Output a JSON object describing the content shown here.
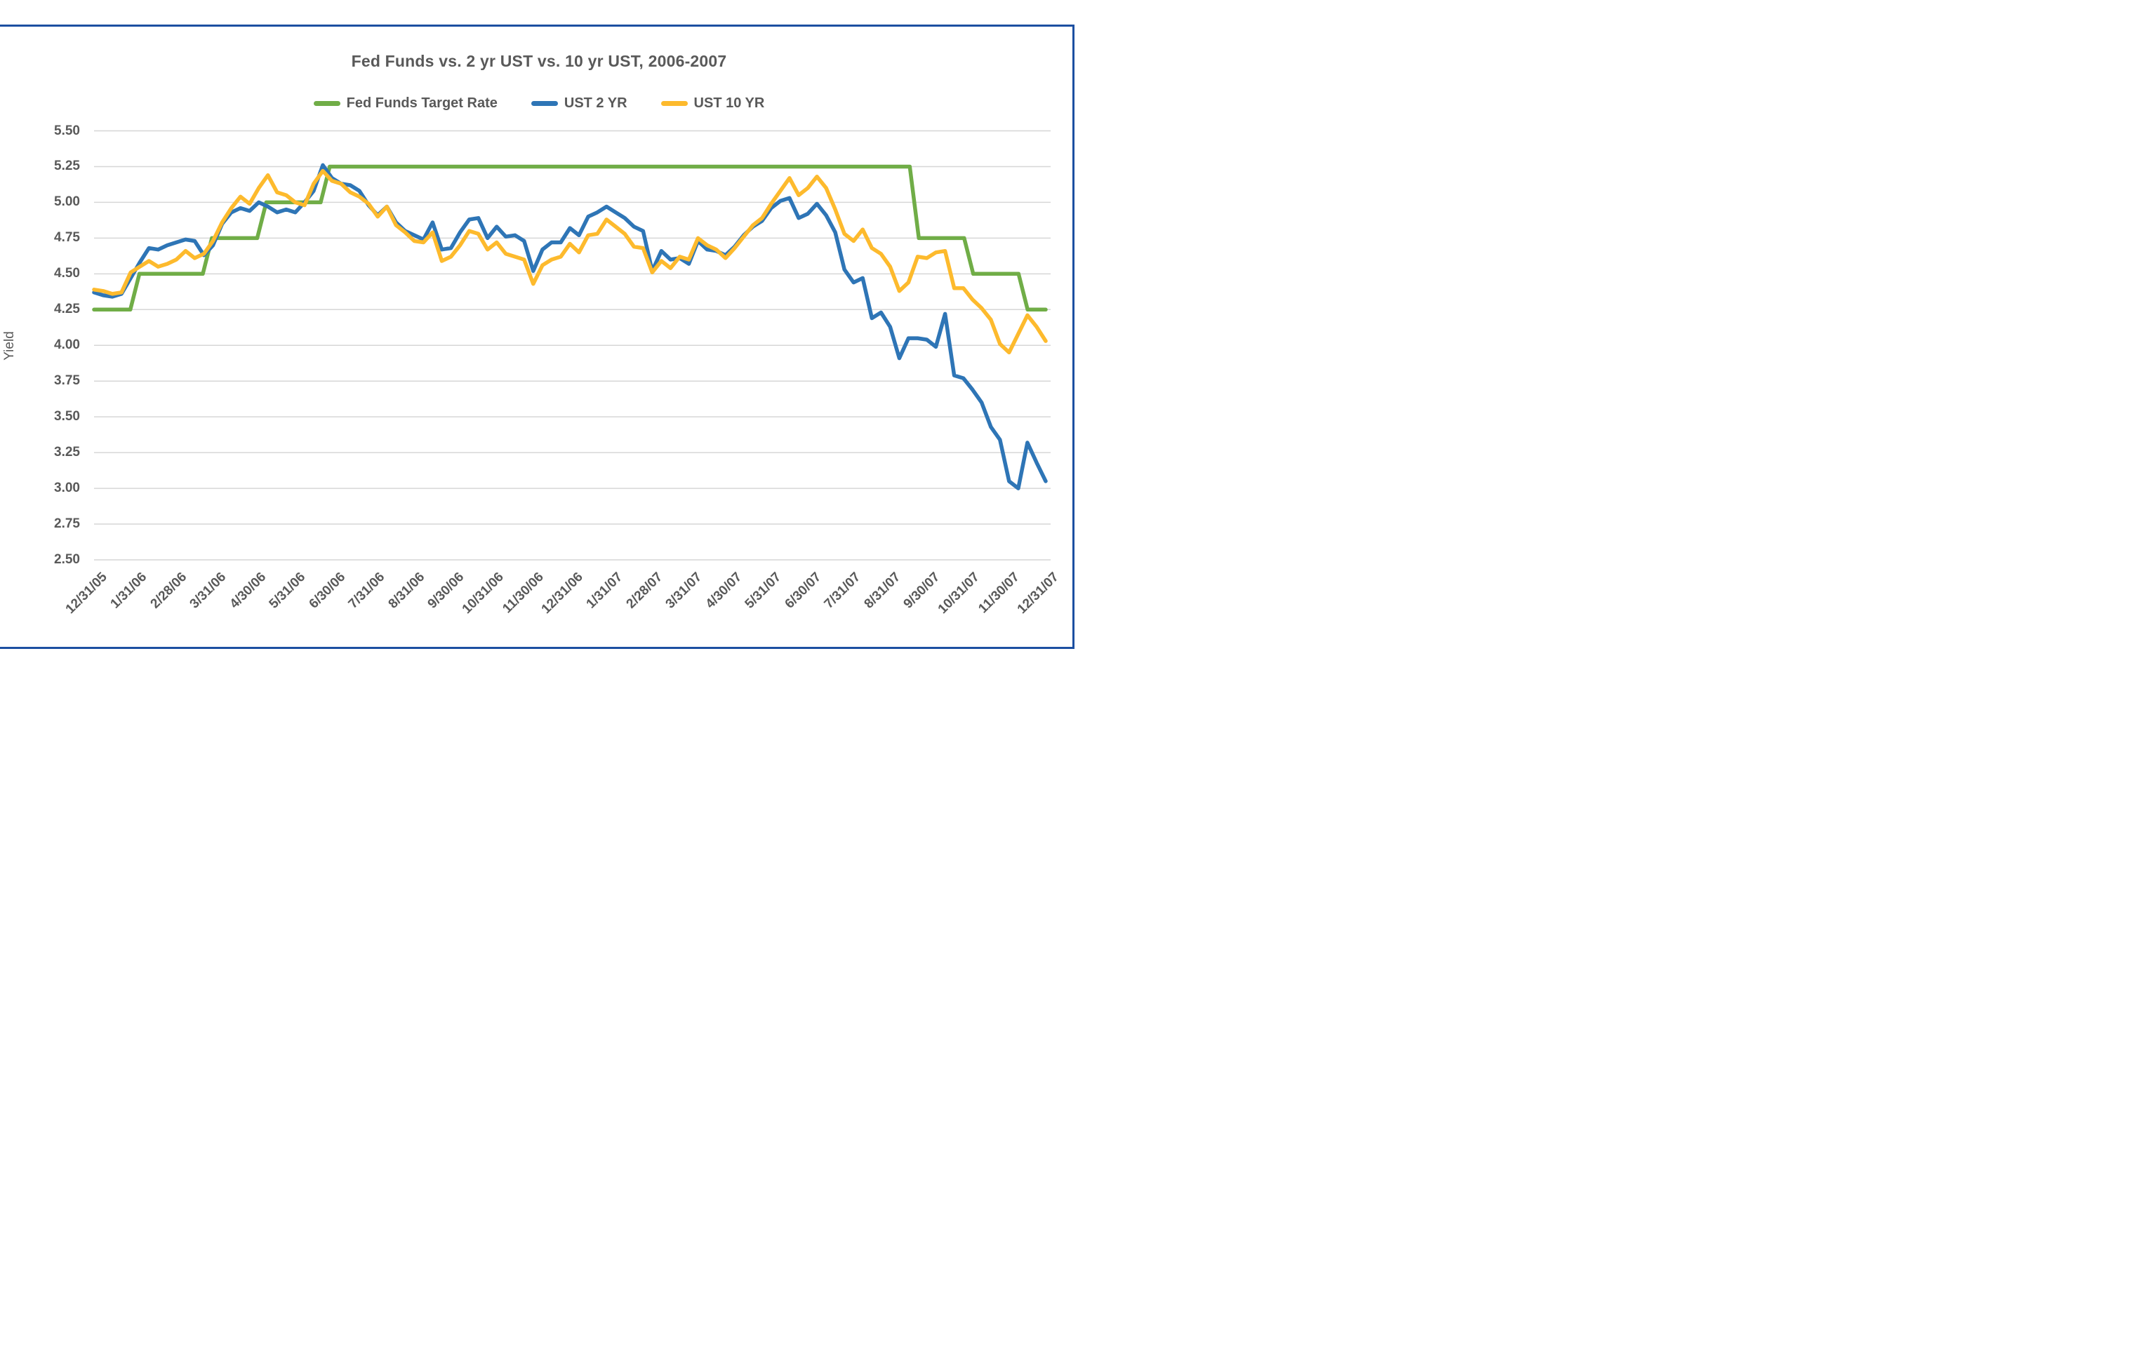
{
  "chart": {
    "title": "Fed Funds vs. 2 yr UST vs. 10 yr UST, 2006-2007",
    "y_axis_label": "Yield"
  },
  "colors": {
    "frame_border": "#1C4FA1",
    "grid_line": "#D6D6D6",
    "label_text": "#595959"
  },
  "chart_data": {
    "type": "line",
    "title": "Fed Funds vs. 2 yr UST vs. 10 yr UST, 2006-2007",
    "ylabel": "Yield",
    "xlabel": "",
    "ylim": [
      2.5,
      5.5
    ],
    "y_tick_step": 0.25,
    "y_tick_labels": [
      "5.50",
      "5.25",
      "5.00",
      "4.75",
      "4.50",
      "4.25",
      "4.00",
      "3.75",
      "3.50",
      "3.25",
      "3.00",
      "2.75",
      "2.50"
    ],
    "grid": "horizontal",
    "legend_position": "top",
    "x_note": "weekly data points, monthly axis labels",
    "x_labels": [
      "12/31/05",
      "1/31/06",
      "2/28/06",
      "3/31/06",
      "4/30/06",
      "5/31/06",
      "6/30/06",
      "7/31/06",
      "8/31/06",
      "9/30/06",
      "10/31/06",
      "11/30/06",
      "12/31/06",
      "1/31/07",
      "2/28/07",
      "3/31/07",
      "4/30/07",
      "5/31/07",
      "6/30/07",
      "7/31/07",
      "8/31/07",
      "9/30/07",
      "10/31/07",
      "11/30/07",
      "12/31/07"
    ],
    "series": [
      {
        "name": "Fed Funds Target Rate",
        "color": "#70AD47",
        "values": [
          4.25,
          4.25,
          4.25,
          4.25,
          4.25,
          4.5,
          4.5,
          4.5,
          4.5,
          4.5,
          4.5,
          4.5,
          4.5,
          4.75,
          4.75,
          4.75,
          4.75,
          4.75,
          4.75,
          5.0,
          5.0,
          5.0,
          5.0,
          5.0,
          5.0,
          5.0,
          5.25,
          5.25,
          5.25,
          5.25,
          5.25,
          5.25,
          5.25,
          5.25,
          5.25,
          5.25,
          5.25,
          5.25,
          5.25,
          5.25,
          5.25,
          5.25,
          5.25,
          5.25,
          5.25,
          5.25,
          5.25,
          5.25,
          5.25,
          5.25,
          5.25,
          5.25,
          5.25,
          5.25,
          5.25,
          5.25,
          5.25,
          5.25,
          5.25,
          5.25,
          5.25,
          5.25,
          5.25,
          5.25,
          5.25,
          5.25,
          5.25,
          5.25,
          5.25,
          5.25,
          5.25,
          5.25,
          5.25,
          5.25,
          5.25,
          5.25,
          5.25,
          5.25,
          5.25,
          5.25,
          5.25,
          5.25,
          5.25,
          5.25,
          5.25,
          5.25,
          5.25,
          5.25,
          5.25,
          5.25,
          5.25,
          4.75,
          4.75,
          4.75,
          4.75,
          4.75,
          4.75,
          4.5,
          4.5,
          4.5,
          4.5,
          4.5,
          4.5,
          4.25,
          4.25,
          4.25
        ]
      },
      {
        "name": "UST 2 YR",
        "color": "#2E75B6",
        "values": [
          4.37,
          4.35,
          4.34,
          4.36,
          4.47,
          4.58,
          4.68,
          4.67,
          4.7,
          4.72,
          4.74,
          4.73,
          4.63,
          4.7,
          4.85,
          4.93,
          4.96,
          4.94,
          5.0,
          4.97,
          4.93,
          4.95,
          4.93,
          5.0,
          5.08,
          5.26,
          5.17,
          5.13,
          5.12,
          5.08,
          4.98,
          4.91,
          4.97,
          4.86,
          4.8,
          4.77,
          4.74,
          4.86,
          4.67,
          4.68,
          4.79,
          4.88,
          4.89,
          4.75,
          4.83,
          4.76,
          4.77,
          4.73,
          4.52,
          4.67,
          4.72,
          4.72,
          4.82,
          4.77,
          4.9,
          4.93,
          4.97,
          4.93,
          4.89,
          4.83,
          4.8,
          4.52,
          4.66,
          4.6,
          4.61,
          4.57,
          4.73,
          4.67,
          4.66,
          4.63,
          4.69,
          4.77,
          4.83,
          4.87,
          4.96,
          5.01,
          5.03,
          4.89,
          4.92,
          4.99,
          4.91,
          4.79,
          4.53,
          4.44,
          4.47,
          4.19,
          4.23,
          4.13,
          3.91,
          4.05,
          4.05,
          4.04,
          3.99,
          4.22,
          3.79,
          3.77,
          3.69,
          3.6,
          3.43,
          3.34,
          3.05,
          3.0,
          3.32,
          3.18,
          3.05
        ]
      },
      {
        "name": "UST 10 YR",
        "color": "#FDBA2D",
        "values": [
          4.39,
          4.38,
          4.36,
          4.37,
          4.51,
          4.55,
          4.59,
          4.55,
          4.57,
          4.6,
          4.66,
          4.61,
          4.64,
          4.73,
          4.86,
          4.96,
          5.04,
          4.99,
          5.1,
          5.19,
          5.07,
          5.05,
          5.0,
          4.98,
          5.13,
          5.22,
          5.15,
          5.13,
          5.07,
          5.04,
          4.99,
          4.9,
          4.97,
          4.84,
          4.79,
          4.73,
          4.72,
          4.79,
          4.59,
          4.62,
          4.7,
          4.8,
          4.78,
          4.67,
          4.72,
          4.64,
          4.62,
          4.6,
          4.43,
          4.56,
          4.6,
          4.62,
          4.71,
          4.65,
          4.77,
          4.78,
          4.88,
          4.83,
          4.78,
          4.69,
          4.68,
          4.51,
          4.59,
          4.54,
          4.62,
          4.6,
          4.75,
          4.7,
          4.67,
          4.61,
          4.68,
          4.76,
          4.84,
          4.89,
          4.99,
          5.08,
          5.17,
          5.05,
          5.1,
          5.18,
          5.1,
          4.95,
          4.78,
          4.73,
          4.81,
          4.68,
          4.64,
          4.55,
          4.38,
          4.44,
          4.62,
          4.61,
          4.65,
          4.66,
          4.4,
          4.4,
          4.32,
          4.26,
          4.18,
          4.01,
          3.95,
          4.08,
          4.21,
          4.13,
          4.03
        ]
      }
    ]
  }
}
